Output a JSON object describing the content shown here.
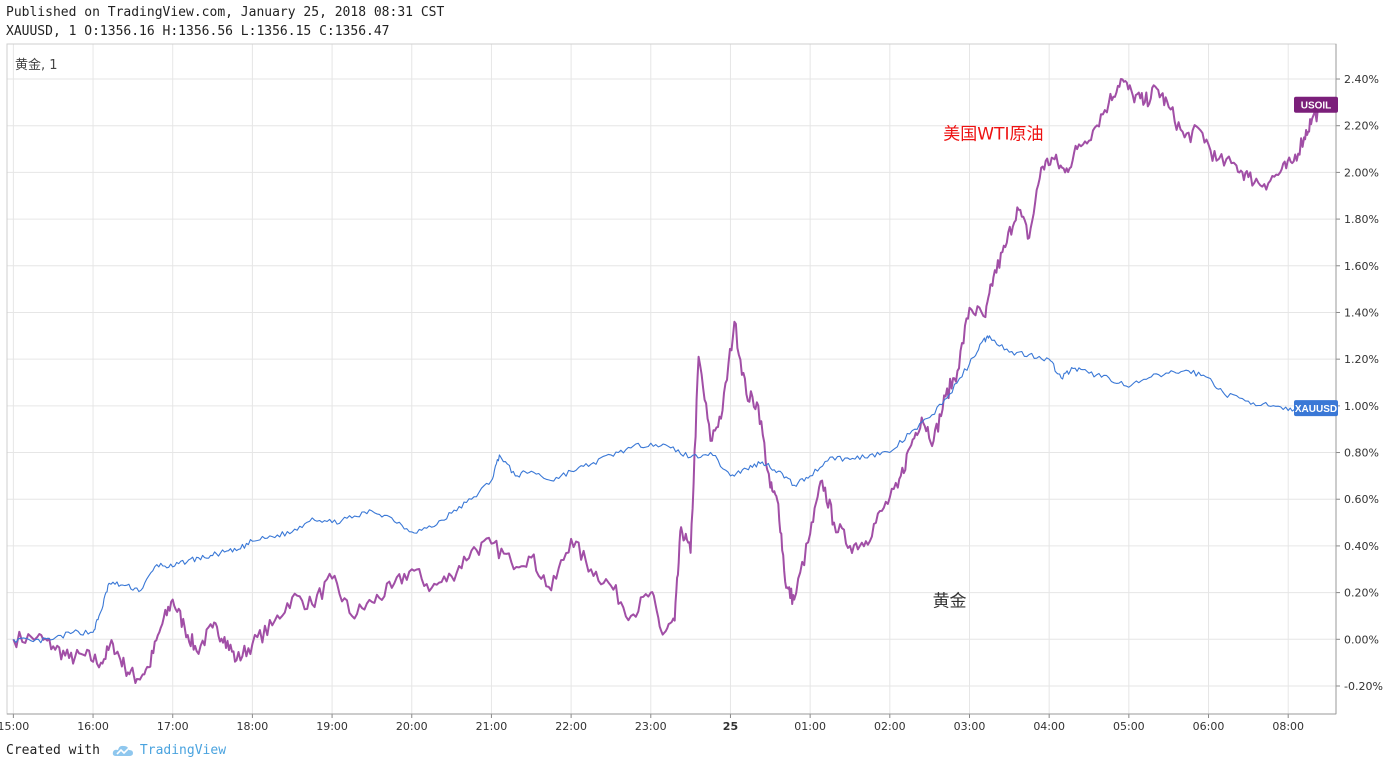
{
  "header": {
    "published": "Published on TradingView.com, January 25, 2018 08:31 CST",
    "symbol_line": "XAUUSD, 1 O:1356.16 H:1356.56 L:1356.15 C:1356.47"
  },
  "pane_label": "黄金, 1",
  "footer": {
    "created_with": "Created with",
    "brand": "TradingView"
  },
  "colors": {
    "usoil": "#a14fa6",
    "usoil_tag": "#7b1f7a",
    "xauusd": "#3a78d6",
    "xauusd_tag": "#3a78d6",
    "grid": "#e6e6e6",
    "annotation_oil": "#ee1111",
    "annotation_gold": "#333333"
  },
  "chart_data": {
    "type": "line",
    "title": "",
    "y_unit": "%",
    "ylim": [
      -0.32,
      2.55
    ],
    "y_ticks": [
      "2.40%",
      "2.20%",
      "2.00%",
      "1.80%",
      "1.60%",
      "1.40%",
      "1.20%",
      "1.00%",
      "0.80%",
      "0.60%",
      "0.40%",
      "0.20%",
      "0.00%",
      "-0.20%"
    ],
    "y_tick_values": [
      2.4,
      2.2,
      2.0,
      1.8,
      1.6,
      1.4,
      1.2,
      1.0,
      0.8,
      0.6,
      0.4,
      0.2,
      0.0,
      -0.2
    ],
    "x_unit": "hours since 15:00",
    "xlim": [
      -0.08,
      16.6
    ],
    "x_ticks": [
      "15:00",
      "16:00",
      "17:00",
      "18:00",
      "19:00",
      "20:00",
      "21:00",
      "22:00",
      "23:00",
      "25",
      "01:00",
      "02:00",
      "03:00",
      "04:00",
      "05:00",
      "06:00",
      "08:00"
    ],
    "x_tick_values": [
      0,
      1,
      2,
      3,
      4,
      5,
      6,
      7,
      8,
      9,
      10,
      11,
      12,
      13,
      14,
      15,
      16
    ],
    "grid": true,
    "annotations": [
      {
        "text": "美国WTI原油",
        "x": 12.3,
        "y": 2.14,
        "color": "#ee1111"
      },
      {
        "text": "黄金",
        "x": 11.75,
        "y": 0.14,
        "color": "#333333"
      }
    ],
    "series": [
      {
        "name": "USOIL",
        "tag_value": 2.29,
        "points": [
          [
            0.0,
            0.0
          ],
          [
            0.3,
            0.01
          ],
          [
            0.5,
            -0.03
          ],
          [
            0.7,
            -0.08
          ],
          [
            0.9,
            -0.07
          ],
          [
            1.1,
            -0.1
          ],
          [
            1.25,
            -0.02
          ],
          [
            1.4,
            -0.12
          ],
          [
            1.55,
            -0.17
          ],
          [
            1.7,
            -0.12
          ],
          [
            1.85,
            0.05
          ],
          [
            2.0,
            0.17
          ],
          [
            2.15,
            0.05
          ],
          [
            2.3,
            -0.05
          ],
          [
            2.5,
            0.05
          ],
          [
            2.65,
            0.01
          ],
          [
            2.8,
            -0.09
          ],
          [
            3.0,
            -0.02
          ],
          [
            3.25,
            0.06
          ],
          [
            3.5,
            0.18
          ],
          [
            3.75,
            0.15
          ],
          [
            4.0,
            0.26
          ],
          [
            4.25,
            0.1
          ],
          [
            4.5,
            0.16
          ],
          [
            4.75,
            0.22
          ],
          [
            5.0,
            0.3
          ],
          [
            5.25,
            0.22
          ],
          [
            5.5,
            0.27
          ],
          [
            5.75,
            0.38
          ],
          [
            6.0,
            0.41
          ],
          [
            6.25,
            0.33
          ],
          [
            6.5,
            0.35
          ],
          [
            6.75,
            0.21
          ],
          [
            7.0,
            0.43
          ],
          [
            7.25,
            0.3
          ],
          [
            7.5,
            0.23
          ],
          [
            7.75,
            0.1
          ],
          [
            8.0,
            0.2
          ],
          [
            8.15,
            0.02
          ],
          [
            8.3,
            0.08
          ],
          [
            8.38,
            0.48
          ],
          [
            8.5,
            0.37
          ],
          [
            8.6,
            1.21
          ],
          [
            8.75,
            0.85
          ],
          [
            8.9,
            0.98
          ],
          [
            9.05,
            1.36
          ],
          [
            9.2,
            1.05
          ],
          [
            9.35,
            1.0
          ],
          [
            9.5,
            0.65
          ],
          [
            9.6,
            0.58
          ],
          [
            9.7,
            0.22
          ],
          [
            9.8,
            0.17
          ],
          [
            10.0,
            0.45
          ],
          [
            10.15,
            0.68
          ],
          [
            10.3,
            0.5
          ],
          [
            10.5,
            0.4
          ],
          [
            10.7,
            0.42
          ],
          [
            10.9,
            0.55
          ],
          [
            11.1,
            0.65
          ],
          [
            11.25,
            0.82
          ],
          [
            11.4,
            0.95
          ],
          [
            11.55,
            0.85
          ],
          [
            11.7,
            1.04
          ],
          [
            11.85,
            1.15
          ],
          [
            12.0,
            1.42
          ],
          [
            12.2,
            1.38
          ],
          [
            12.3,
            1.55
          ],
          [
            12.45,
            1.68
          ],
          [
            12.6,
            1.85
          ],
          [
            12.75,
            1.72
          ],
          [
            12.9,
            2.02
          ],
          [
            13.05,
            2.06
          ],
          [
            13.2,
            2.0
          ],
          [
            13.35,
            2.1
          ],
          [
            13.55,
            2.18
          ],
          [
            13.75,
            2.3
          ],
          [
            13.9,
            2.4
          ],
          [
            14.05,
            2.33
          ],
          [
            14.2,
            2.3
          ],
          [
            14.35,
            2.36
          ],
          [
            14.5,
            2.28
          ],
          [
            14.7,
            2.15
          ],
          [
            14.9,
            2.18
          ],
          [
            15.1,
            2.05
          ],
          [
            15.35,
            2.03
          ],
          [
            15.5,
            1.98
          ],
          [
            15.7,
            1.95
          ],
          [
            15.9,
            2.0
          ],
          [
            16.05,
            2.04
          ],
          [
            16.2,
            2.15
          ],
          [
            16.3,
            2.23
          ],
          [
            16.45,
            2.29
          ]
        ]
      },
      {
        "name": "XAUUSD",
        "tag_value": 0.99,
        "points": [
          [
            0.0,
            0.0
          ],
          [
            0.25,
            -0.01
          ],
          [
            0.5,
            0.0
          ],
          [
            0.75,
            0.03
          ],
          [
            1.0,
            0.03
          ],
          [
            1.1,
            0.12
          ],
          [
            1.2,
            0.24
          ],
          [
            1.4,
            0.23
          ],
          [
            1.6,
            0.21
          ],
          [
            1.8,
            0.32
          ],
          [
            2.0,
            0.31
          ],
          [
            2.2,
            0.34
          ],
          [
            2.4,
            0.35
          ],
          [
            2.6,
            0.37
          ],
          [
            2.8,
            0.38
          ],
          [
            3.0,
            0.42
          ],
          [
            3.25,
            0.44
          ],
          [
            3.5,
            0.46
          ],
          [
            3.75,
            0.52
          ],
          [
            4.0,
            0.5
          ],
          [
            4.25,
            0.52
          ],
          [
            4.5,
            0.55
          ],
          [
            4.75,
            0.52
          ],
          [
            5.0,
            0.46
          ],
          [
            5.25,
            0.48
          ],
          [
            5.5,
            0.54
          ],
          [
            5.75,
            0.6
          ],
          [
            6.0,
            0.68
          ],
          [
            6.1,
            0.79
          ],
          [
            6.3,
            0.7
          ],
          [
            6.5,
            0.72
          ],
          [
            6.75,
            0.68
          ],
          [
            7.0,
            0.72
          ],
          [
            7.25,
            0.75
          ],
          [
            7.5,
            0.79
          ],
          [
            7.75,
            0.82
          ],
          [
            8.0,
            0.84
          ],
          [
            8.25,
            0.82
          ],
          [
            8.5,
            0.78
          ],
          [
            8.75,
            0.8
          ],
          [
            9.0,
            0.7
          ],
          [
            9.2,
            0.73
          ],
          [
            9.4,
            0.76
          ],
          [
            9.6,
            0.72
          ],
          [
            9.8,
            0.66
          ],
          [
            10.0,
            0.7
          ],
          [
            10.25,
            0.78
          ],
          [
            10.5,
            0.77
          ],
          [
            10.75,
            0.79
          ],
          [
            11.0,
            0.8
          ],
          [
            11.25,
            0.88
          ],
          [
            11.5,
            0.95
          ],
          [
            11.75,
            1.05
          ],
          [
            12.0,
            1.18
          ],
          [
            12.15,
            1.27
          ],
          [
            12.25,
            1.3
          ],
          [
            12.5,
            1.23
          ],
          [
            12.75,
            1.22
          ],
          [
            13.0,
            1.2
          ],
          [
            13.15,
            1.12
          ],
          [
            13.3,
            1.16
          ],
          [
            13.5,
            1.14
          ],
          [
            13.75,
            1.12
          ],
          [
            14.0,
            1.08
          ],
          [
            14.25,
            1.12
          ],
          [
            14.5,
            1.14
          ],
          [
            14.75,
            1.15
          ],
          [
            15.0,
            1.12
          ],
          [
            15.2,
            1.05
          ],
          [
            15.5,
            1.02
          ],
          [
            15.75,
            1.0
          ],
          [
            16.0,
            0.98
          ],
          [
            16.2,
            0.99
          ]
        ]
      }
    ]
  }
}
